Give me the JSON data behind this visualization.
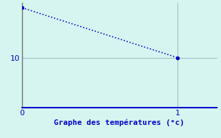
{
  "x": [
    0,
    1
  ],
  "y": [
    20,
    10
  ],
  "line_color": "#0000cc",
  "marker": "o",
  "marker_size": 3,
  "linestyle": ":",
  "linewidth": 1.2,
  "background_color": "#d6f5f0",
  "xlabel": "Graphe des températures (°c)",
  "xlabel_color": "#0000cc",
  "xlabel_fontsize": 8,
  "grid_color": "#a0bfbf",
  "xlim": [
    0,
    1.25
  ],
  "ylim": [
    0,
    21
  ],
  "xticks": [
    0,
    1
  ],
  "yticks": [
    10
  ],
  "tick_color": "#0000cc",
  "tick_fontsize": 8,
  "spine_bottom_color": "#0000cc",
  "spine_left_color": "#707070"
}
